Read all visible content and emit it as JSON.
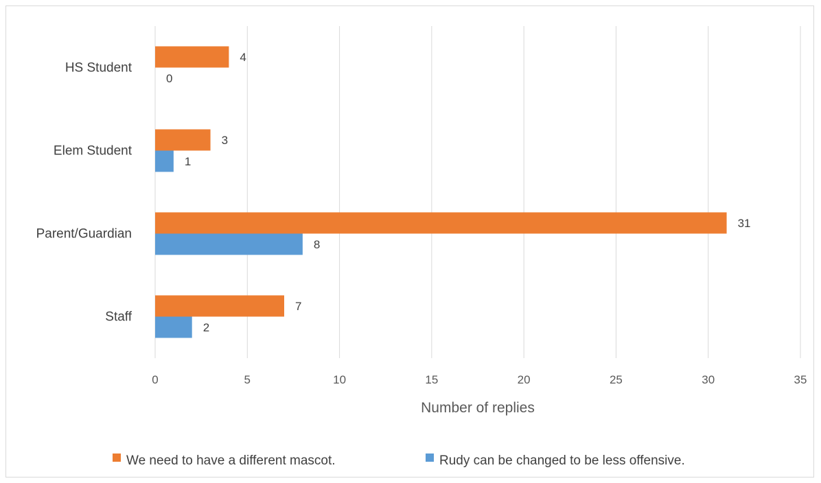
{
  "chart_data": {
    "type": "bar",
    "orientation": "horizontal",
    "categories": [
      "HS Student",
      "Elem Student",
      "Parent/Guardian",
      "Staff"
    ],
    "series": [
      {
        "name": "We need to have a different mascot.",
        "color": "#ED7D31",
        "values": [
          4,
          3,
          31,
          7
        ]
      },
      {
        "name": "Rudy can be changed to be less offensive.",
        "color": "#5B9BD5",
        "values": [
          0,
          1,
          8,
          2
        ]
      }
    ],
    "xlabel": "Number of replies",
    "xlim": [
      0,
      35
    ],
    "xticks": [
      0,
      5,
      10,
      15,
      20,
      25,
      30,
      35
    ],
    "grid": "vertical",
    "legend_position": "bottom",
    "data_labels": true
  }
}
